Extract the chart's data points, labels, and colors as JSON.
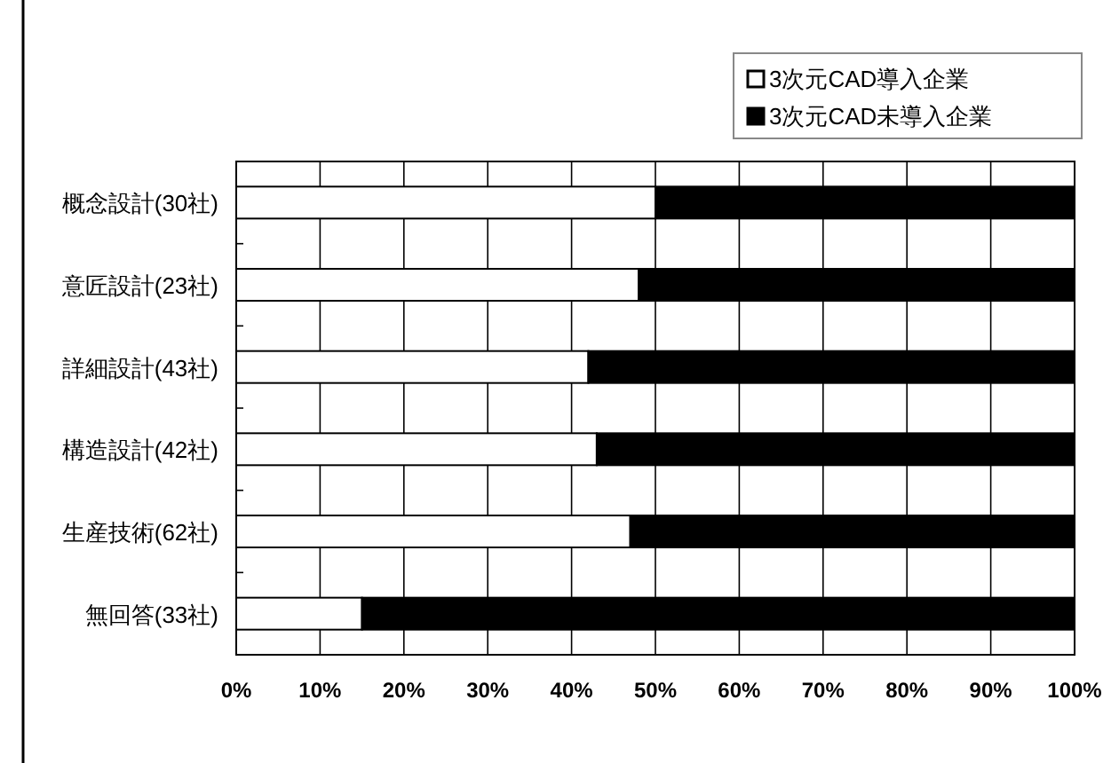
{
  "chart_data": {
    "type": "bar",
    "orientation": "horizontal",
    "stacked": true,
    "categories": [
      "概念設計(30社)",
      "意匠設計(23社)",
      "詳細設計(43社)",
      "構造設計(42社)",
      "生産技術(62社)",
      "無回答(33社)"
    ],
    "series": [
      {
        "name": "3次元CAD導入企業",
        "color": "#ffffff",
        "values": [
          50,
          48,
          42,
          43,
          47,
          15
        ]
      },
      {
        "name": "3次元CAD未導入企業",
        "color": "#000000",
        "values": [
          50,
          52,
          58,
          57,
          53,
          85
        ]
      }
    ],
    "xlim": [
      0,
      100
    ],
    "xticks": [
      {
        "value": 0,
        "label": "0%"
      },
      {
        "value": 10,
        "label": "10%"
      },
      {
        "value": 20,
        "label": "20%"
      },
      {
        "value": 30,
        "label": "30%"
      },
      {
        "value": 40,
        "label": "40%"
      },
      {
        "value": 50,
        "label": "50%"
      },
      {
        "value": 60,
        "label": "60%"
      },
      {
        "value": 70,
        "label": "70%"
      },
      {
        "value": 80,
        "label": "80%"
      },
      {
        "value": 90,
        "label": "90%"
      },
      {
        "value": 100,
        "label": "100%"
      }
    ],
    "grid": "x",
    "legend": "top right"
  }
}
